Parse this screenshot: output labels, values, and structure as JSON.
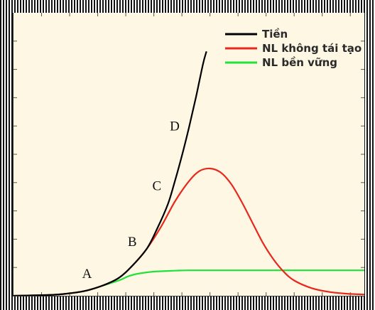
{
  "chart_data": {
    "type": "line",
    "title": "",
    "xlabel": "",
    "ylabel": "",
    "xlim": [
      0,
      10
    ],
    "ylim": [
      0,
      10
    ],
    "grid": false,
    "legend_position": "top-right",
    "series": [
      {
        "name": "Tiền",
        "color": "#000000",
        "points": [
          [
            0,
            0
          ],
          [
            1,
            0.03
          ],
          [
            1.5,
            0.08
          ],
          [
            2,
            0.18
          ],
          [
            2.5,
            0.38
          ],
          [
            3,
            0.7
          ],
          [
            3.4,
            1.2
          ],
          [
            3.8,
            1.85
          ],
          [
            4.1,
            2.65
          ],
          [
            4.4,
            3.6
          ],
          [
            4.6,
            4.5
          ],
          [
            4.8,
            5.5
          ],
          [
            5,
            6.6
          ],
          [
            5.2,
            7.8
          ],
          [
            5.4,
            9.1
          ],
          [
            5.5,
            9.6
          ]
        ]
      },
      {
        "name": "NL không tái tạo",
        "color": "#e8271e",
        "points": [
          [
            0,
            0
          ],
          [
            1,
            0.03
          ],
          [
            1.5,
            0.08
          ],
          [
            2,
            0.18
          ],
          [
            2.5,
            0.38
          ],
          [
            3,
            0.7
          ],
          [
            3.4,
            1.2
          ],
          [
            3.8,
            1.85
          ],
          [
            4.2,
            2.7
          ],
          [
            4.6,
            3.7
          ],
          [
            5,
            4.5
          ],
          [
            5.3,
            4.9
          ],
          [
            5.6,
            5.0
          ],
          [
            5.9,
            4.85
          ],
          [
            6.2,
            4.4
          ],
          [
            6.5,
            3.7
          ],
          [
            6.8,
            2.9
          ],
          [
            7.1,
            2.1
          ],
          [
            7.4,
            1.45
          ],
          [
            7.7,
            0.95
          ],
          [
            8,
            0.6
          ],
          [
            8.5,
            0.3
          ],
          [
            9,
            0.15
          ],
          [
            9.5,
            0.08
          ],
          [
            10,
            0.05
          ]
        ]
      },
      {
        "name": "NL bền vững",
        "color": "#22e23a",
        "points": [
          [
            0,
            0
          ],
          [
            1,
            0.03
          ],
          [
            1.5,
            0.08
          ],
          [
            2,
            0.18
          ],
          [
            2.5,
            0.38
          ],
          [
            3,
            0.6
          ],
          [
            3.3,
            0.78
          ],
          [
            3.6,
            0.88
          ],
          [
            4,
            0.95
          ],
          [
            4.5,
            0.98
          ],
          [
            5,
            1.0
          ],
          [
            6,
            1.0
          ],
          [
            7,
            1.0
          ],
          [
            8,
            1.0
          ],
          [
            9,
            1.0
          ],
          [
            10,
            1.0
          ]
        ]
      }
    ],
    "annotations": [
      {
        "label": "A",
        "x": 2.2,
        "y": 0.7
      },
      {
        "label": "B",
        "x": 3.5,
        "y": 1.95
      },
      {
        "label": "C",
        "x": 4.2,
        "y": 4.15
      },
      {
        "label": "D",
        "x": 4.7,
        "y": 6.5
      }
    ]
  }
}
